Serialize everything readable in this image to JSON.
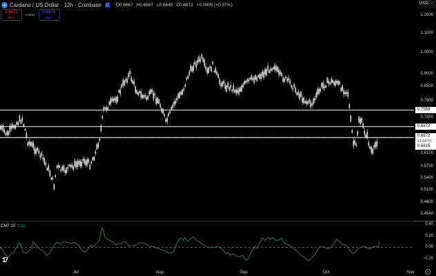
{
  "header": {
    "title": "Cardano / US Dollar · 12h · Coinbase",
    "ohlc": {
      "open": "O0.6667",
      "high": "H0.6697",
      "low": "L0.6645",
      "close": "C0.6672",
      "change": "+0.0005 (+0.07%)"
    }
  },
  "trade": {
    "sell_price": "0.6673",
    "sell_label": "SELL",
    "spread": "0.0001",
    "buy_price": "0.6674",
    "buy_label": "BUY"
  },
  "currency_selector": "USD",
  "price_axis": {
    "labels": [
      "1.2000",
      "1.1000",
      "1.0000",
      "0.9000",
      "0.8500",
      "0.7900",
      "0.7300",
      "0.6100",
      "0.5700",
      "0.5400",
      "0.5100",
      "0.4800",
      "0.4540"
    ],
    "tags": {
      "level1": "0.7559",
      "level2": "0.6972",
      "current": "0.6672",
      "countdown": "11:04:27",
      "level3": "0.6615"
    }
  },
  "time_axis": [
    "Jul",
    "Aug",
    "Sep",
    "Oct",
    "Nov"
  ],
  "indicator": {
    "name": "CMF 20",
    "value": "0.11",
    "axis": [
      "0.40",
      "0.20",
      "0.00",
      "-0.20"
    ]
  },
  "colors": {
    "background": "#000000",
    "candles": "#e0e0e0",
    "cmf_line": "#2e7d32",
    "sell": "#f23645",
    "buy": "#2962ff",
    "level_lines": "#d0d0d0"
  },
  "chart_data": {
    "type": "candlestick",
    "title": "Cardano / US Dollar · 12h · Coinbase",
    "x_ticks": [
      "Jul",
      "Aug",
      "Sep",
      "Oct",
      "Nov"
    ],
    "y_ticks": [
      1.2,
      1.1,
      1.0,
      0.9,
      0.85,
      0.79,
      0.73,
      0.61,
      0.57,
      0.54,
      0.51,
      0.48,
      0.454
    ],
    "y_scale": "log",
    "horizontal_levels": [
      0.7559,
      0.6972,
      0.6615
    ],
    "current_price": 0.6672,
    "approx_close_path": {
      "x": [
        "Jun-mid",
        "Jun-20",
        "Jun-28",
        "Jul-05",
        "Jul-12",
        "Jul-20",
        "Jul-27",
        "Aug-03",
        "Aug-10",
        "Aug-17",
        "Aug-24",
        "Aug-31",
        "Sep-07",
        "Sep-14",
        "Sep-21",
        "Sep-28",
        "Oct-05",
        "Oct-10",
        "Oct-15",
        "Oct-20"
      ],
      "values": [
        0.68,
        0.62,
        0.55,
        0.56,
        0.59,
        0.74,
        0.86,
        0.78,
        0.71,
        0.83,
        0.96,
        0.87,
        0.82,
        0.88,
        0.92,
        0.8,
        0.87,
        0.64,
        0.72,
        0.667
      ]
    },
    "indicator": {
      "name": "CMF 20",
      "last": 0.11,
      "ylim": [
        -0.3,
        0.45
      ],
      "zero_line": true
    }
  }
}
